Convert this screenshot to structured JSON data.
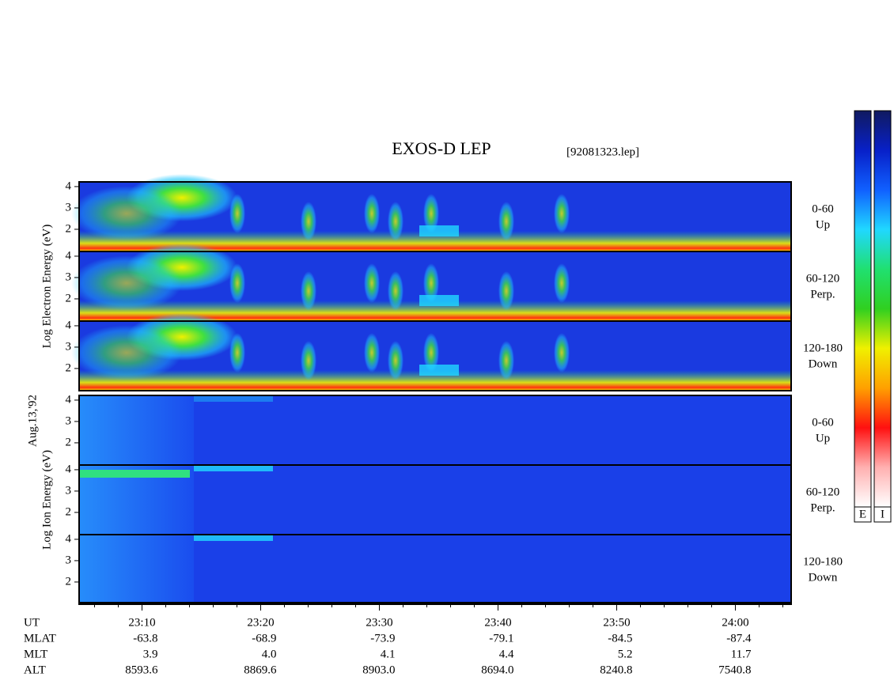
{
  "chart_data": {
    "type": "spectrogram",
    "title": "EXOS-D LEP",
    "file": "[92081323.lep]",
    "date": "Aug.13,'92",
    "groups": [
      {
        "ylabel": "Log Electron Energy (eV)",
        "panels": [
          {
            "label": [
              "0-60",
              "Up"
            ]
          },
          {
            "label": [
              "60-120",
              "Perp."
            ]
          },
          {
            "label": [
              "120-180",
              "Down"
            ]
          }
        ]
      },
      {
        "ylabel": "Log Ion Energy (eV)",
        "panels": [
          {
            "label": [
              "0-60",
              "Up"
            ]
          },
          {
            "label": [
              "60-120",
              "Perp."
            ]
          },
          {
            "label": [
              "120-180",
              "Down"
            ]
          }
        ]
      }
    ],
    "ylim": [
      0.96,
      4.22
    ],
    "yticks": [
      2,
      3,
      4
    ],
    "xlim": [
      1384.7,
      1444.7
    ],
    "xticks": [
      {
        "value": 1390,
        "label": "23:10"
      },
      {
        "value": 1400,
        "label": "23:20"
      },
      {
        "value": 1410,
        "label": "23:30"
      },
      {
        "value": 1420,
        "label": "23:40"
      },
      {
        "value": 1430,
        "label": "23:50"
      },
      {
        "value": 1440,
        "label": "24:00"
      }
    ],
    "minor_xticks": [
      1386,
      1388,
      1392,
      1394,
      1396,
      1398,
      1402,
      1404,
      1406,
      1408,
      1412,
      1414,
      1416,
      1418,
      1422,
      1424,
      1426,
      1428,
      1432,
      1434,
      1436,
      1438,
      1442,
      1444
    ],
    "ephemeris": {
      "time_label": "UT",
      "rows": [
        {
          "label": "MLAT",
          "values": [
            "-63.8",
            "-68.9",
            "-73.9",
            "-79.1",
            "-84.5",
            "-87.4"
          ]
        },
        {
          "label": "MLT",
          "values": [
            "3.9",
            "4.0",
            "4.1",
            "4.4",
            "5.2",
            "11.7"
          ]
        },
        {
          "label": "ALT",
          "values": [
            "8593.6",
            "8869.6",
            "8903.0",
            "8694.0",
            "8240.8",
            "7540.8"
          ]
        }
      ]
    },
    "colorbars": [
      "E",
      "I"
    ],
    "colorscale": [
      "#101a60",
      "#0820c8",
      "#1060ff",
      "#20d8ff",
      "#20e070",
      "#30d020",
      "#f0f000",
      "#ffa000",
      "#ff1010",
      "#ffb0b0",
      "#ffffff"
    ]
  }
}
